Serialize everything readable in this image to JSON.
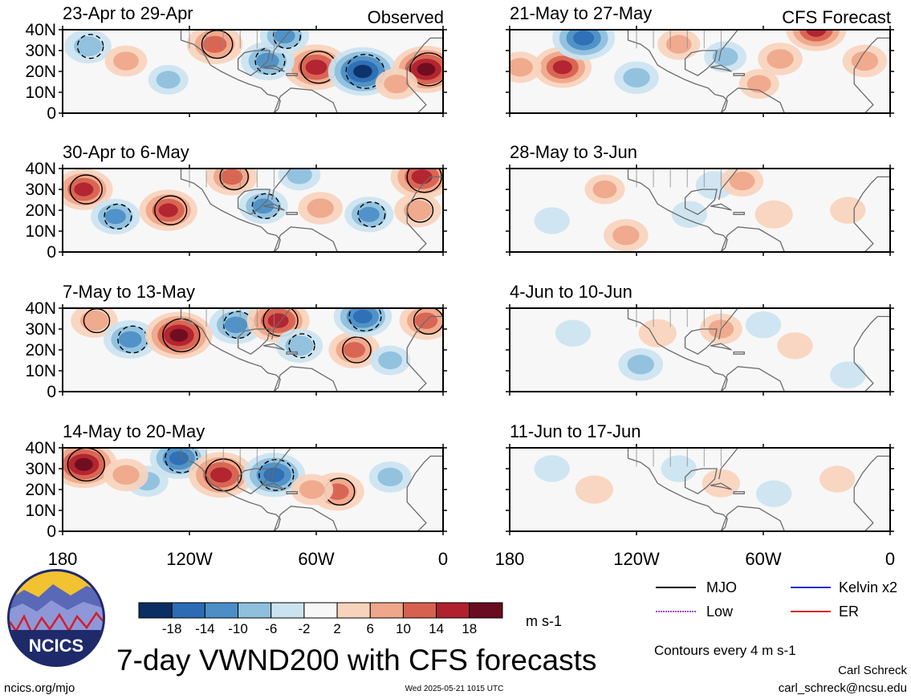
{
  "figure": {
    "main_title": "7-day VWND200 with CFS forecasts",
    "site": "ncics.org/mjo",
    "timestamp": "Wed 2025-05-21 1015 UTC",
    "author": "Carl Schreck",
    "email": "carl_schreck@ncsu.edu",
    "logo_text": "NCICS",
    "column_labels": {
      "observed": "Observed",
      "forecast": "CFS Forecast"
    },
    "contour_note": "Contours every 4 m s-1",
    "units": "m s-1"
  },
  "legend": {
    "items": [
      {
        "label": "MJO",
        "color": "#000000"
      },
      {
        "label": "Kelvin x2",
        "color": "#1a2fcf"
      },
      {
        "label": "Low",
        "color": "#9b46d6"
      },
      {
        "label": "ER",
        "color": "#e0211f"
      }
    ]
  },
  "colorbar": {
    "labels": [
      "-18",
      "-14",
      "-10",
      "-6",
      "-2",
      "2",
      "6",
      "10",
      "14",
      "18"
    ],
    "colors": [
      "#0b2f63",
      "#2c6cb4",
      "#4b8fc6",
      "#8ebfdd",
      "#cbe3f0",
      "#f7f7f7",
      "#f8d3bc",
      "#efa68a",
      "#d7614f",
      "#b0202e",
      "#6a0c1f"
    ]
  },
  "chart_data": {
    "type": "heatmap",
    "variable": "VWND200",
    "xlabels": [
      "180",
      "120W",
      "60W",
      "0"
    ],
    "ylabels": [
      "40N",
      "30N",
      "20N",
      "10N",
      "0"
    ],
    "xlim_lon": [
      -180,
      0
    ],
    "ylim_lat": [
      0,
      40
    ],
    "panels": [
      {
        "column": "observed",
        "period": "23-Apr to 29-Apr",
        "blobs": [
          {
            "lon": -60,
            "lat": 22,
            "value": 16
          },
          {
            "lon": -38,
            "lat": 20,
            "value": -18
          },
          {
            "lon": -8,
            "lat": 21,
            "value": 17
          },
          {
            "lon": -83,
            "lat": 25,
            "value": -11
          },
          {
            "lon": -108,
            "lat": 33,
            "value": 12
          },
          {
            "lon": -75,
            "lat": 37,
            "value": -9
          },
          {
            "lon": -168,
            "lat": 32,
            "value": -8
          },
          {
            "lon": -150,
            "lat": 25,
            "value": 6
          },
          {
            "lon": -130,
            "lat": 16,
            "value": -5
          },
          {
            "lon": -22,
            "lat": 14,
            "value": 6
          }
        ]
      },
      {
        "column": "observed",
        "period": "30-Apr to 6-May",
        "blobs": [
          {
            "lon": -170,
            "lat": 30,
            "value": 13
          },
          {
            "lon": -155,
            "lat": 17,
            "value": -9
          },
          {
            "lon": -130,
            "lat": 20,
            "value": 13
          },
          {
            "lon": -100,
            "lat": 36,
            "value": 10
          },
          {
            "lon": -85,
            "lat": 22,
            "value": -9
          },
          {
            "lon": -58,
            "lat": 21,
            "value": 7
          },
          {
            "lon": -35,
            "lat": 18,
            "value": -9
          },
          {
            "lon": -10,
            "lat": 36,
            "value": 15
          },
          {
            "lon": -12,
            "lat": 20,
            "value": 8
          },
          {
            "lon": -68,
            "lat": 37,
            "value": -6
          }
        ]
      },
      {
        "column": "observed",
        "period": "7-May to 13-May",
        "blobs": [
          {
            "lon": -165,
            "lat": 34,
            "value": 8
          },
          {
            "lon": -148,
            "lat": 25,
            "value": -11
          },
          {
            "lon": -125,
            "lat": 27,
            "value": 17
          },
          {
            "lon": -98,
            "lat": 32,
            "value": -11
          },
          {
            "lon": -78,
            "lat": 34,
            "value": 15
          },
          {
            "lon": -68,
            "lat": 22,
            "value": -8
          },
          {
            "lon": -42,
            "lat": 20,
            "value": 10
          },
          {
            "lon": -38,
            "lat": 36,
            "value": -13
          },
          {
            "lon": -8,
            "lat": 34,
            "value": 11
          },
          {
            "lon": -25,
            "lat": 15,
            "value": -5
          }
        ]
      },
      {
        "column": "observed",
        "period": "14-May to 20-May",
        "blobs": [
          {
            "lon": -170,
            "lat": 32,
            "value": 17
          },
          {
            "lon": -125,
            "lat": 35,
            "value": -13
          },
          {
            "lon": -105,
            "lat": 27,
            "value": 16
          },
          {
            "lon": -80,
            "lat": 27,
            "value": -15
          },
          {
            "lon": -50,
            "lat": 19,
            "value": 11
          },
          {
            "lon": -140,
            "lat": 24,
            "value": -6
          },
          {
            "lon": -150,
            "lat": 27,
            "value": 7
          },
          {
            "lon": -25,
            "lat": 26,
            "value": -6
          },
          {
            "lon": -62,
            "lat": 20,
            "value": 6
          }
        ]
      },
      {
        "column": "forecast",
        "period": "21-May to 27-May",
        "blobs": [
          {
            "lon": -155,
            "lat": 22,
            "value": 13
          },
          {
            "lon": -145,
            "lat": 36,
            "value": -15
          },
          {
            "lon": -120,
            "lat": 17,
            "value": -7
          },
          {
            "lon": -100,
            "lat": 33,
            "value": 6
          },
          {
            "lon": -78,
            "lat": 27,
            "value": -6
          },
          {
            "lon": -52,
            "lat": 26,
            "value": 7
          },
          {
            "lon": -35,
            "lat": 40,
            "value": 14
          },
          {
            "lon": -12,
            "lat": 25,
            "value": 7
          },
          {
            "lon": -175,
            "lat": 22,
            "value": 6
          },
          {
            "lon": -62,
            "lat": 14,
            "value": 5
          }
        ]
      },
      {
        "column": "forecast",
        "period": "28-May to 3-Jun",
        "blobs": [
          {
            "lon": -125,
            "lat": 8,
            "value": 7
          },
          {
            "lon": -135,
            "lat": 30,
            "value": 5
          },
          {
            "lon": -83,
            "lat": 32,
            "value": -4
          },
          {
            "lon": -70,
            "lat": 34,
            "value": 6
          },
          {
            "lon": -95,
            "lat": 18,
            "value": -3
          },
          {
            "lon": -55,
            "lat": 18,
            "value": 4
          },
          {
            "lon": -160,
            "lat": 15,
            "value": -3
          },
          {
            "lon": -20,
            "lat": 20,
            "value": 3
          }
        ]
      },
      {
        "column": "forecast",
        "period": "4-Jun to 10-Jun",
        "blobs": [
          {
            "lon": -118,
            "lat": 13,
            "value": -7
          },
          {
            "lon": -80,
            "lat": 30,
            "value": 6
          },
          {
            "lon": -150,
            "lat": 28,
            "value": -3
          },
          {
            "lon": -110,
            "lat": 28,
            "value": 4
          },
          {
            "lon": -45,
            "lat": 22,
            "value": 3
          },
          {
            "lon": -60,
            "lat": 32,
            "value": -3
          },
          {
            "lon": -20,
            "lat": 8,
            "value": -3
          }
        ]
      },
      {
        "column": "forecast",
        "period": "11-Jun to 17-Jun",
        "blobs": [
          {
            "lon": -140,
            "lat": 20,
            "value": 4
          },
          {
            "lon": -100,
            "lat": 30,
            "value": -3
          },
          {
            "lon": -80,
            "lat": 23,
            "value": 4
          },
          {
            "lon": -55,
            "lat": 18,
            "value": -3
          },
          {
            "lon": -160,
            "lat": 30,
            "value": -3
          },
          {
            "lon": -25,
            "lat": 25,
            "value": 3
          }
        ]
      }
    ]
  }
}
